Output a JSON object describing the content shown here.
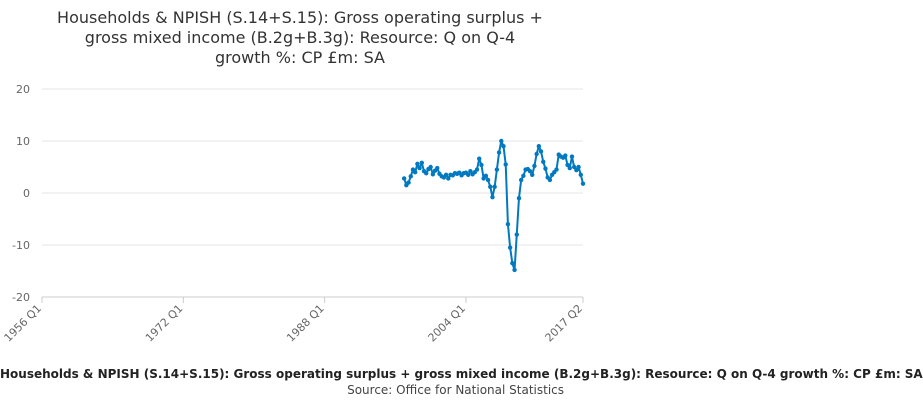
{
  "chart_data": {
    "type": "line",
    "title_lines": [
      "Households & NPISH (S.14+S.15): Gross operating surplus +",
      "gross mixed income (B.2g+B.3g): Resource: Q on Q-4",
      "growth %: CP £m: SA"
    ],
    "xlabel": "",
    "ylabel": "",
    "x_ticks": [
      "1956 Q1",
      "1972 Q1",
      "1988 Q1",
      "2004 Q1",
      "2017 Q2"
    ],
    "xlim": [
      "1956 Q1",
      "2017 Q2"
    ],
    "ylim": [
      -20,
      20
    ],
    "y_ticks": [
      20,
      10,
      0,
      -10,
      -20
    ],
    "grid": true,
    "line_color": "#0079c1",
    "markers": true,
    "series": [
      {
        "x": [
          "1997 Q1",
          "1997 Q2",
          "1997 Q3",
          "1997 Q4",
          "1998 Q1",
          "1998 Q2",
          "1998 Q3",
          "1998 Q4",
          "1999 Q1",
          "1999 Q2",
          "1999 Q3",
          "1999 Q4",
          "2000 Q1",
          "2000 Q2",
          "2000 Q3",
          "2000 Q4",
          "2001 Q1",
          "2001 Q2",
          "2001 Q3",
          "2001 Q4",
          "2002 Q1",
          "2002 Q2",
          "2002 Q3",
          "2002 Q4",
          "2003 Q1",
          "2003 Q2",
          "2003 Q3",
          "2003 Q4",
          "2004 Q1",
          "2004 Q2",
          "2004 Q3",
          "2004 Q4",
          "2005 Q1",
          "2005 Q2",
          "2005 Q3",
          "2005 Q4",
          "2006 Q1",
          "2006 Q2",
          "2006 Q3",
          "2006 Q4",
          "2007 Q1",
          "2007 Q2",
          "2007 Q3",
          "2007 Q4",
          "2008 Q1",
          "2008 Q2",
          "2008 Q3",
          "2008 Q4",
          "2009 Q1",
          "2009 Q2",
          "2009 Q3",
          "2009 Q4",
          "2010 Q1",
          "2010 Q2",
          "2010 Q3",
          "2010 Q4",
          "2011 Q1",
          "2011 Q2",
          "2011 Q3",
          "2011 Q4",
          "2012 Q1",
          "2012 Q2",
          "2012 Q3",
          "2012 Q4",
          "2013 Q1",
          "2013 Q2",
          "2013 Q3",
          "2013 Q4",
          "2014 Q1",
          "2014 Q2",
          "2014 Q3",
          "2014 Q4",
          "2015 Q1",
          "2015 Q2",
          "2015 Q3",
          "2015 Q4",
          "2016 Q1",
          "2016 Q2",
          "2016 Q3",
          "2016 Q4",
          "2017 Q1",
          "2017 Q2"
        ],
        "values": [
          2.8,
          1.5,
          2.0,
          3.2,
          4.5,
          4.0,
          5.6,
          4.8,
          5.8,
          4.2,
          3.8,
          4.6,
          5.0,
          3.6,
          4.3,
          4.8,
          3.7,
          3.2,
          3.0,
          3.5,
          2.8,
          3.5,
          3.4,
          3.8,
          3.7,
          3.9,
          3.4,
          3.8,
          3.9,
          3.5,
          4.2,
          3.6,
          4.0,
          4.5,
          6.6,
          5.4,
          2.8,
          3.3,
          2.5,
          1.2,
          -0.8,
          1.2,
          4.5,
          7.8,
          10.0,
          9.0,
          5.5,
          -6.0,
          -10.5,
          -13.5,
          -14.8,
          -8.0,
          -1.0,
          2.5,
          3.3,
          4.5,
          4.6,
          4.2,
          3.5,
          5.2,
          7.5,
          9.0,
          8.0,
          6.0,
          4.7,
          3.0,
          2.5,
          3.5,
          4.0,
          4.5,
          7.4,
          7.0,
          6.8,
          7.2,
          5.4,
          4.8,
          7.0,
          5.0,
          4.4,
          5.0,
          3.5,
          1.8
        ]
      }
    ]
  },
  "footer": {
    "series_label": "Households & NPISH (S.14+S.15): Gross operating surplus + gross mixed income (B.2g+B.3g): Resource: Q on Q-4 growth %: CP £m: SA",
    "source_label": "Source: Office for National Statistics"
  }
}
